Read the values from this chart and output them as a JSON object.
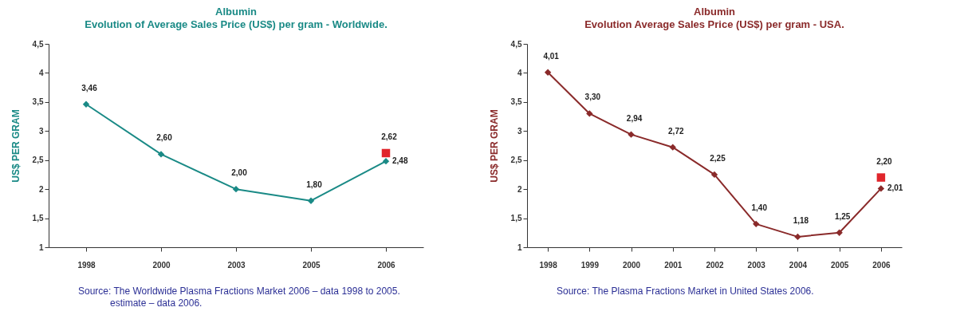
{
  "chart_data": [
    {
      "type": "line",
      "title": "Albumin",
      "subtitle": "Evolution of Average Sales Price (US$) per gram - Worldwide.",
      "ylabel": "US$ PER GRAM",
      "categories": [
        "1998",
        "2000",
        "2003",
        "2005",
        "2006"
      ],
      "series": [
        {
          "color": "#1a8a86",
          "marker": "diamond",
          "values": [
            3.46,
            2.6,
            2.0,
            1.8,
            2.48
          ],
          "value_labels": [
            "3,46",
            "2,60",
            "2,00",
            "1,80",
            "2,48"
          ]
        },
        {
          "type": "scatter",
          "color": "#e0262c",
          "marker": "square",
          "values": [
            null,
            null,
            null,
            null,
            2.62
          ],
          "value_labels": [
            null,
            null,
            null,
            null,
            "2,62"
          ]
        }
      ],
      "ylim": [
        1,
        4.5
      ],
      "yticks": [
        1,
        {
          "value": 1.5,
          "label": "1,5"
        },
        2,
        {
          "value": 2.5,
          "label": "2,5"
        },
        3,
        {
          "value": 3.5,
          "label": "3,5"
        },
        4,
        {
          "value": 4.5,
          "label": "4,5"
        }
      ],
      "grid": false,
      "annotations": [
        "Source: The Worldwide Plasma Fractions Market 2006 – data 1998  to 2005.",
        "estimate – data 2006."
      ]
    },
    {
      "type": "line",
      "title": "Albumin",
      "subtitle": "Evolution Average Sales Price (US$) per gram -  USA.",
      "ylabel": "US$ PER GRAM",
      "categories": [
        "1998",
        "1999",
        "2000",
        "2001",
        "2002",
        "2003",
        "2004",
        "2005",
        "2006"
      ],
      "series": [
        {
          "color": "#8a2a2a",
          "marker": "diamond",
          "values": [
            4.01,
            3.3,
            2.94,
            2.72,
            2.25,
            1.4,
            1.18,
            1.25,
            2.01
          ],
          "value_labels": [
            "4,01",
            "3,30",
            "2,94",
            "2,72",
            "2,25",
            "1,40",
            "1,18",
            "1,25",
            "2,01"
          ]
        },
        {
          "type": "scatter",
          "color": "#e0262c",
          "marker": "square",
          "values": [
            null,
            null,
            null,
            null,
            null,
            null,
            null,
            null,
            2.2
          ],
          "value_labels": [
            null,
            null,
            null,
            null,
            null,
            null,
            null,
            null,
            "2,20"
          ]
        }
      ],
      "ylim": [
        1,
        4.5
      ],
      "yticks": [
        1,
        {
          "value": 1.5,
          "label": "1,5"
        },
        2,
        {
          "value": 2.5,
          "label": "2,5"
        },
        3,
        {
          "value": 3.5,
          "label": "3,5"
        },
        4,
        {
          "value": 4.5,
          "label": "4,5"
        }
      ],
      "grid": false,
      "annotations": [
        "Source: The Plasma Fractions Market in United States 2006."
      ]
    }
  ]
}
